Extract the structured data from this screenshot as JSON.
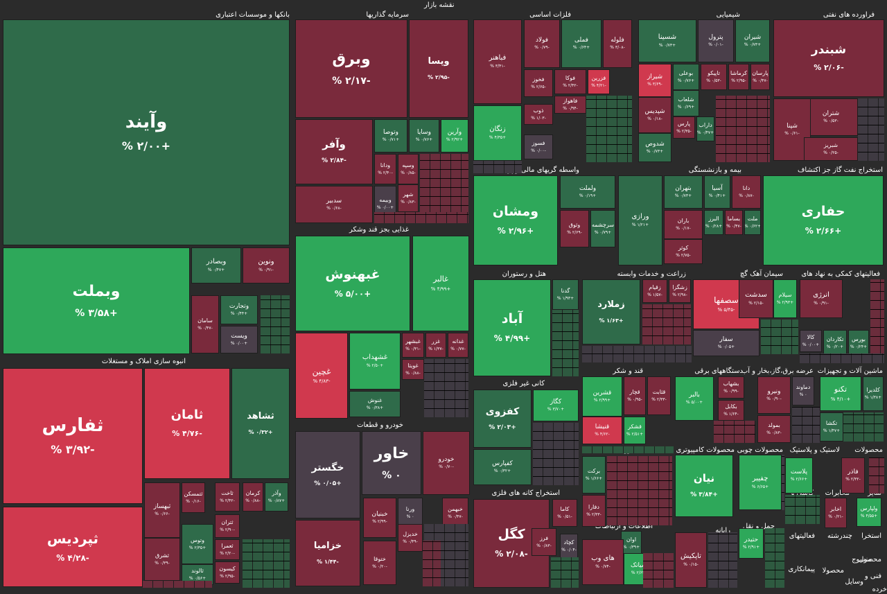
{
  "chart_data": {
    "type": "treemap",
    "title": "نقشه بازار",
    "colors": {
      "strong_up": "#2ea85a",
      "up": "#2f6b4a",
      "neutral": "#4a3f4a",
      "down": "#7a2a3c",
      "strong_down": "#d0394e",
      "background": "#2b2b2b"
    },
    "sectors": [
      {
        "name": "بانکها و موسسات اعتباری"
      },
      {
        "name": "سرمایه گذاریها"
      },
      {
        "name": "فلزات اساسی"
      },
      {
        "name": "شیمیایی"
      },
      {
        "name": "فراورده های نفتی"
      },
      {
        "name": "واسطه گریهای مالی و پولی"
      },
      {
        "name": "بیمه و بازنشستگی"
      },
      {
        "name": "استخراج نفت گاز جز اکتشاف"
      },
      {
        "name": "غذایی بجز قند وشکر"
      },
      {
        "name": "هتل و رستوران"
      },
      {
        "name": "زراعت و خدمات وابسته"
      },
      {
        "name": "سیمان آهک گچ"
      },
      {
        "name": "فعالیتهای کمکی به نهاد های"
      },
      {
        "name": "انبوه سازی املاک و مستغلات"
      },
      {
        "name": "کانی غیر فلزی"
      },
      {
        "name": "قند و شکر"
      },
      {
        "name": "دستگاههای برقی"
      },
      {
        "name": "عرضه برق،گاز،بخار و آب"
      },
      {
        "name": "ماشین آلات و تجهیزات"
      },
      {
        "name": "خودرو و قطعات"
      },
      {
        "name": "دارویی"
      },
      {
        "name": "محصولات کامپیوتری"
      },
      {
        "name": "محصولات چوبی"
      },
      {
        "name": "لاستیک و پلاستیک"
      },
      {
        "name": "محصولات"
      },
      {
        "name": "استخراج کانه های فلزی"
      },
      {
        "name": "کاشی و"
      },
      {
        "name": "مخابرات"
      },
      {
        "name": "سایر"
      },
      {
        "name": "اطلاعات و ارتباطات"
      },
      {
        "name": "رایانه"
      },
      {
        "name": "حمل و نقل"
      },
      {
        "name": "فعالیتهای"
      },
      {
        "name": "استخرا"
      },
      {
        "name": "چندرشته"
      },
      {
        "name": "منسوج"
      },
      {
        "name": "محصول"
      },
      {
        "name": "پیمانکاری"
      },
      {
        "name": "محصولا"
      },
      {
        "name": "فنی و"
      },
      {
        "name": "وسایل"
      },
      {
        "name": "خرده"
      }
    ],
    "symbols": [
      {
        "name": "وآیند",
        "change": "+۲/۰۰ %",
        "change_value": 2.0
      },
      {
        "name": "وبملت",
        "change": "+۳/۵۸ %",
        "change_value": 3.58
      },
      {
        "name": "وبصادر",
        "change": "+۰/۴۷ %",
        "change_value": 0.47
      },
      {
        "name": "ونوین",
        "change": "-۰/۹۱ %",
        "change_value": -0.91
      },
      {
        "name": "وتجارت",
        "change": "+۰/۴۴ %",
        "change_value": 0.44
      },
      {
        "name": "سامان",
        "change": "-۰/۴۷ %",
        "change_value": -0.47
      },
      {
        "name": "ویست",
        "change": "+۰/۰۰ %",
        "change_value": 0.0
      },
      {
        "name": "وبرق",
        "change": "-۲/۱۷ %",
        "change_value": -2.17
      },
      {
        "name": "وپسا",
        "change": "-۲/۹۵ %",
        "change_value": -2.95
      },
      {
        "name": "وآفر",
        "change": "-۲/۸۴ %",
        "change_value": -2.84
      },
      {
        "name": "وتوصا",
        "change": "+۰/۷۱ %",
        "change_value": 0.71
      },
      {
        "name": "وسایا",
        "change": "+۰/۷۶ %",
        "change_value": 0.76
      },
      {
        "name": "وآرین",
        "change": "+۲/۹۲ %",
        "change_value": 2.92
      },
      {
        "name": "ودانا",
        "change": "-۲/۴۰ %",
        "change_value": -2.4
      },
      {
        "name": "وسپه",
        "change": "-۰/۸۵ %",
        "change_value": -0.85
      },
      {
        "name": "شهر",
        "change": "-۰/۸۳ %",
        "change_value": -0.83
      },
      {
        "name": "سدبیر",
        "change": "-۰/۶۸ %",
        "change_value": -0.68
      },
      {
        "name": "وبیمه",
        "change": "+۰/۰۰ %",
        "change_value": 0.0
      },
      {
        "name": "فباهنر",
        "change": "-۳/۴۱ %",
        "change_value": -3.41
      },
      {
        "name": "فولاد",
        "change": "-۰/۷۹ %",
        "change_value": -0.79
      },
      {
        "name": "فملی",
        "change": "+۰/۶۴ %",
        "change_value": 0.64
      },
      {
        "name": "فلوله",
        "change": "-۳/۰۸ %",
        "change_value": -3.08
      },
      {
        "name": "فخوز",
        "change": "-۲/۶۵ %",
        "change_value": -2.65
      },
      {
        "name": "فوکا",
        "change": "-۲/۴۲ %",
        "change_value": -2.42
      },
      {
        "name": "فزرین",
        "change": "-۴/۲۱ %",
        "change_value": -4.21
      },
      {
        "name": "فاهواز",
        "change": "-۰/۹۴ %",
        "change_value": -0.94
      },
      {
        "name": "ذوب",
        "change": "-۱/۰۳ %",
        "change_value": -1.03
      },
      {
        "name": "زنگان",
        "change": "+۴/۳۵ %",
        "change_value": 4.35
      },
      {
        "name": "فسوز",
        "change": "-۰/۰۰ %",
        "change_value": 0.0
      },
      {
        "name": "شسینا",
        "change": "+۰/۷۳ %",
        "change_value": 0.73
      },
      {
        "name": "پترول",
        "change": "-۰/۰۱ %",
        "change_value": -0.01
      },
      {
        "name": "شیران",
        "change": "+۰/۷۳ %",
        "change_value": 0.73
      },
      {
        "name": "شیراز",
        "change": "-۳/۶۹ %",
        "change_value": -3.69
      },
      {
        "name": "بوعلی",
        "change": "+۰/۷۶ %",
        "change_value": 0.76
      },
      {
        "name": "تاپیکو",
        "change": "-۰/۵۳ %",
        "change_value": -0.53
      },
      {
        "name": "کرماشا",
        "change": "-۲/۹۵ %",
        "change_value": -2.95
      },
      {
        "name": "پارسان",
        "change": "-۰/۴۷ %",
        "change_value": -0.47
      },
      {
        "name": "شلعاب",
        "change": "+۰/۶۹ %",
        "change_value": 0.69
      },
      {
        "name": "شپدیس",
        "change": "-۰/۱۸ %",
        "change_value": -0.18
      },
      {
        "name": "پارس",
        "change": "-۲/۳۵ %",
        "change_value": -2.35
      },
      {
        "name": "داراب",
        "change": "+۰/۴۷ %",
        "change_value": 0.47
      },
      {
        "name": "شدوص",
        "change": "+۰/۷۳ %",
        "change_value": 0.73
      },
      {
        "name": "شبندر",
        "change": "-۲/۰۶ %",
        "change_value": -2.06
      },
      {
        "name": "شتران",
        "change": "-۰/۵۳ %",
        "change_value": -0.53
      },
      {
        "name": "شپنا",
        "change": "-۰/۶۱ %",
        "change_value": -0.61
      },
      {
        "name": "شبریز",
        "change": "-۰/۲۵ %",
        "change_value": -0.25
      },
      {
        "name": "ومشان",
        "change": "+۲/۹۶ %",
        "change_value": 2.96
      },
      {
        "name": "ولملت",
        "change": "+۰/۱۹ %",
        "change_value": 0.19
      },
      {
        "name": "وثوق",
        "change": "-۲/۶۹ %",
        "change_value": -2.69
      },
      {
        "name": "سرچشمه",
        "change": "+۰/۷۹ %",
        "change_value": 0.79
      },
      {
        "name": "ورازی",
        "change": "+۱/۲۱ %",
        "change_value": 1.21
      },
      {
        "name": "بتهران",
        "change": "+۰/۷۳ %",
        "change_value": 0.73
      },
      {
        "name": "آسیا",
        "change": "+۰/۴۱ %",
        "change_value": 0.41
      },
      {
        "name": "دانا",
        "change": "-۰/۸۷ %",
        "change_value": -0.87
      },
      {
        "name": "باران",
        "change": "-۰/۱۷ %",
        "change_value": -0.17
      },
      {
        "name": "البرز",
        "change": "+۰/۲۸ %",
        "change_value": 0.28
      },
      {
        "name": "بساما",
        "change": "-۰/۴۷ %",
        "change_value": -0.47
      },
      {
        "name": "ملت",
        "change": "+۰/۶۲ %",
        "change_value": 0.62
      },
      {
        "name": "کوثر",
        "change": "-۲/۷۵ %",
        "change_value": -2.75
      },
      {
        "name": "حفاری",
        "change": "+۲/۶۶ %",
        "change_value": 2.66
      },
      {
        "name": "غبهنوش",
        "change": "+۵/۰۰ %",
        "change_value": 5.0
      },
      {
        "name": "غالبر",
        "change": "+۴/۹۹ %",
        "change_value": 4.99
      },
      {
        "name": "غچین",
        "change": "-۴/۸۳ %",
        "change_value": -4.83
      },
      {
        "name": "غشهداب",
        "change": "+۲/۵۰ %",
        "change_value": 2.5
      },
      {
        "name": "غبشهر",
        "change": "-۰/۳۱ %",
        "change_value": -0.31
      },
      {
        "name": "غزر",
        "change": "-۱/۳۷ %",
        "change_value": -1.37
      },
      {
        "name": "غدانه",
        "change": "-۰/۷۷ %",
        "change_value": -0.77
      },
      {
        "name": "غویتا",
        "change": "-۰/۸۸ %",
        "change_value": -0.88
      },
      {
        "name": "غنوش",
        "change": "+۰/۳۸ %",
        "change_value": 0.38
      },
      {
        "name": "آباد",
        "change": "+۴/۹۹ %",
        "change_value": 4.99
      },
      {
        "name": "گدنا",
        "change": "+۱/۹۳ %",
        "change_value": 1.93
      },
      {
        "name": "زملارد",
        "change": "+۱/۶۳ %",
        "change_value": 1.63
      },
      {
        "name": "زقیام",
        "change": "-۱/۵۷ %",
        "change_value": -1.57
      },
      {
        "name": "زشگزا",
        "change": "-۲/۹۸ %",
        "change_value": -2.98
      },
      {
        "name": "سصفها",
        "change": "-۵/۴۵ %",
        "change_value": -5.45
      },
      {
        "name": "سدشت",
        "change": "-۲/۱۵ %",
        "change_value": -2.15
      },
      {
        "name": "سیلام",
        "change": "+۲/۹۳ %",
        "change_value": 2.93
      },
      {
        "name": "سفار",
        "change": "+۰/۰۵ %",
        "change_value": 0.05
      },
      {
        "name": "انرژی",
        "change": "-۰/۹۱ %",
        "change_value": -0.91
      },
      {
        "name": "کالا",
        "change": "+۰/۰۰ %",
        "change_value": 0.0
      },
      {
        "name": "تکاردان",
        "change": "+۰/۲۰ %",
        "change_value": 0.2
      },
      {
        "name": "بورس",
        "change": "+۰/۲۴ %",
        "change_value": 0.24
      },
      {
        "name": "ثفارس",
        "change": "-۳/۹۲ %",
        "change_value": -3.92
      },
      {
        "name": "ثامان",
        "change": "-۴/۷۶ %",
        "change_value": -4.76
      },
      {
        "name": "ثشاهد",
        "change": "+۰/۳۲ %",
        "change_value": 0.32
      },
      {
        "name": "ثپردیس",
        "change": "-۴/۲۸ %",
        "change_value": -4.28
      },
      {
        "name": "ثتمسکن",
        "change": "-۰/۱۶ %",
        "change_value": -0.16
      },
      {
        "name": "ثاخت",
        "change": "-۲/۴۲ %",
        "change_value": -2.42
      },
      {
        "name": "کرمان",
        "change": "-۰/۸۸ %",
        "change_value": -0.88
      },
      {
        "name": "وآذر",
        "change": "+۰/۸۷ %",
        "change_value": 0.87
      },
      {
        "name": "ثبهساز",
        "change": "-۰/۶۶ %",
        "change_value": -0.66
      },
      {
        "name": "ثتران",
        "change": "-۲/۹۰ %",
        "change_value": -2.9
      },
      {
        "name": "وتوس",
        "change": "+۲/۳۵ %",
        "change_value": 2.35
      },
      {
        "name": "ثعمرا",
        "change": "-۲/۲۰ %",
        "change_value": -2.2
      },
      {
        "name": "ثشرق",
        "change": "-۰/۳۹ %",
        "change_value": -0.39
      },
      {
        "name": "ثالوند",
        "change": "+۰/۵۶ %",
        "change_value": 0.56
      },
      {
        "name": "کیسون",
        "change": "-۲/۹۵ %",
        "change_value": -2.95
      },
      {
        "name": "کفزوی",
        "change": "+۲/۰۳ %",
        "change_value": 2.03
      },
      {
        "name": "کگاز",
        "change": "+۳/۷۰ %",
        "change_value": 3.7
      },
      {
        "name": "کفپارس",
        "change": "+۰/۳۲ %",
        "change_value": 0.32
      },
      {
        "name": "قشرین",
        "change": "+۲/۹۹ %",
        "change_value": 2.99
      },
      {
        "name": "قچار",
        "change": "-۰/۹۵ %",
        "change_value": -0.95
      },
      {
        "name": "قثابت",
        "change": "-۲/۳۳ %",
        "change_value": -2.33
      },
      {
        "name": "قنیشا",
        "change": "-۴/۶۲ %",
        "change_value": -4.62
      },
      {
        "name": "قشکر",
        "change": "+۲/۵۱ %",
        "change_value": 2.51
      },
      {
        "name": "بالبر",
        "change": "+۵/۰۰ %",
        "change_value": 5.0
      },
      {
        "name": "بشهاب",
        "change": "-۰/۹۹ %",
        "change_value": -0.99
      },
      {
        "name": "بکابل",
        "change": "-۱/۶۴ %",
        "change_value": -1.64
      },
      {
        "name": "ونیرو",
        "change": "-۰/۹۰ %",
        "change_value": -0.9
      },
      {
        "name": "دماوند",
        "change": "۰ %",
        "change_value": 0.0
      },
      {
        "name": "بمولد",
        "change": "-۰/۸۳ %",
        "change_value": -0.83
      },
      {
        "name": "تکنو",
        "change": "+۴/۱۰ %",
        "change_value": 4.1
      },
      {
        "name": "کلدیرا",
        "change": "+۱/۳۸ %",
        "change_value": 1.38
      },
      {
        "name": "تکشا",
        "change": "+۱/۴۷ %",
        "change_value": 1.47
      },
      {
        "name": "خاور",
        "change": "۰ %",
        "change_value": 0.0
      },
      {
        "name": "خگستر",
        "change": "+۰/۰۵ %",
        "change_value": 0.05
      },
      {
        "name": "خودرو",
        "change": "-۰/۷۰ %",
        "change_value": -0.7
      },
      {
        "name": "خزامیا",
        "change": "-۱/۴۴ %",
        "change_value": -1.44
      },
      {
        "name": "خبنیان",
        "change": "-۲/۹۹ %",
        "change_value": -2.99
      },
      {
        "name": "ورنا",
        "change": "۰ %",
        "change_value": 0.0
      },
      {
        "name": "خبهمن",
        "change": "-۰/۴۷ %",
        "change_value": -0.47
      },
      {
        "name": "خدیزل",
        "change": "-۰/۴۹ %",
        "change_value": -0.49
      },
      {
        "name": "ختوقا",
        "change": "-۰/۲۰ %",
        "change_value": -0.2
      },
      {
        "name": "برکت",
        "change": "+۱/۶۶ %",
        "change_value": 1.66
      },
      {
        "name": "دفارا",
        "change": "-۲/۳۳ %",
        "change_value": -2.33
      },
      {
        "name": "نیان",
        "change": "+۳/۸۴ %",
        "change_value": 3.84
      },
      {
        "name": "چفیبر",
        "change": "+۶/۶۵ %",
        "change_value": 6.65
      },
      {
        "name": "پلاست",
        "change": "+۲/۶۶ %",
        "change_value": 2.66
      },
      {
        "name": "فاذر",
        "change": "-۲/۳۲ %",
        "change_value": -2.32
      },
      {
        "name": "اخابر",
        "change": "-۰/۲۱ %",
        "change_value": -0.21
      },
      {
        "name": "ولپارس",
        "change": "+۴/۵۵ %",
        "change_value": 4.55
      },
      {
        "name": "کگل",
        "change": "-۲/۰۸ %",
        "change_value": -2.08
      },
      {
        "name": "کاما",
        "change": "-۰/۵۱ %",
        "change_value": -0.51
      },
      {
        "name": "فرز",
        "change": "-۰/۸۳ %",
        "change_value": -0.83
      },
      {
        "name": "کچاد",
        "change": "-۰/۰۴ %",
        "change_value": -0.04
      },
      {
        "name": "اوان",
        "change": "+۰/۳۹ %",
        "change_value": 0.39
      },
      {
        "name": "های وب",
        "change": "-۰/۷۴ %",
        "change_value": -0.74
      },
      {
        "name": "اسیاتک",
        "change": "+۲/۶۴ %",
        "change_value": 2.64
      },
      {
        "name": "تاپکیش",
        "change": "-۰/۱۵ %",
        "change_value": -0.15
      },
      {
        "name": "حتیدر",
        "change": "+۲/۹۱ %",
        "change_value": 2.91
      }
    ]
  }
}
